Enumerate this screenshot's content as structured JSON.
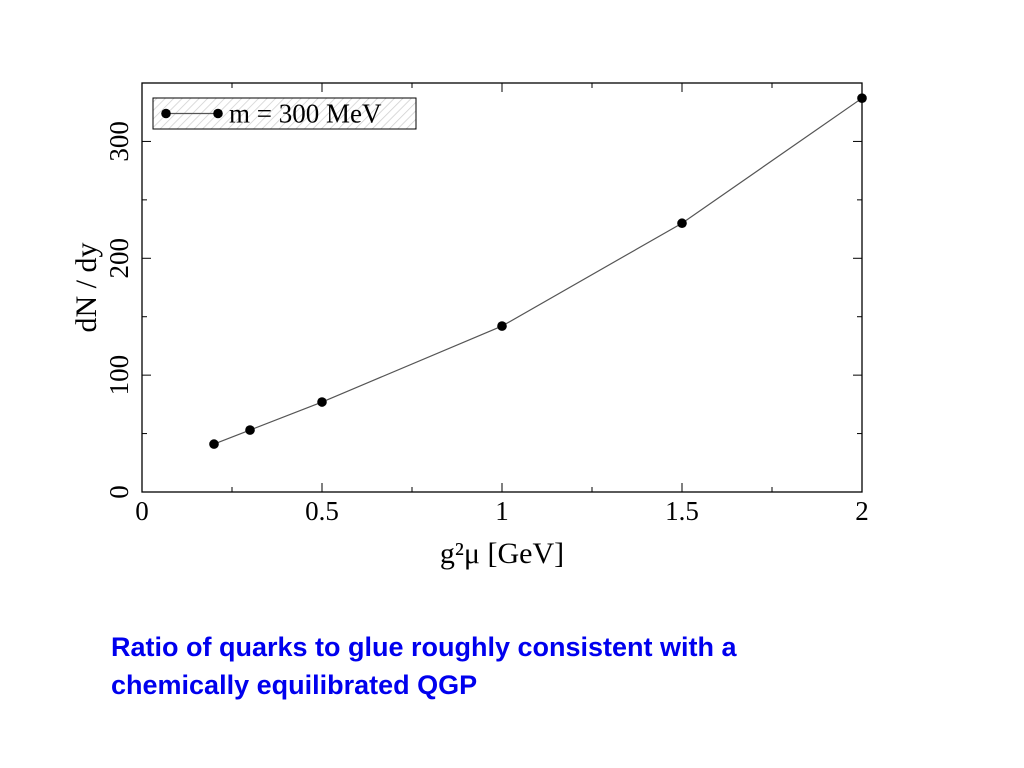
{
  "chart_data": {
    "type": "line",
    "xlabel": "g²μ [GeV]",
    "ylabel": "dN / dy",
    "xlim": [
      0,
      2
    ],
    "ylim": [
      0,
      350
    ],
    "x_ticks": [
      "0",
      "0.5",
      "1",
      "1.5",
      "2"
    ],
    "y_ticks": [
      "0",
      "100",
      "200",
      "300"
    ],
    "grid": false,
    "legend_position": "top-left",
    "series": [
      {
        "name": "m = 300 MeV",
        "x": [
          0.2,
          0.3,
          0.5,
          1.0,
          1.5,
          2.0
        ],
        "y": [
          41,
          53,
          77,
          142,
          230,
          337
        ],
        "color": "#000000",
        "line_color": "#555555",
        "marker": "circle"
      }
    ]
  },
  "caption": {
    "line1": "Ratio of quarks to glue roughly consistent with a",
    "line2": "chemically equilibrated QGP",
    "color": "#0000ee"
  }
}
